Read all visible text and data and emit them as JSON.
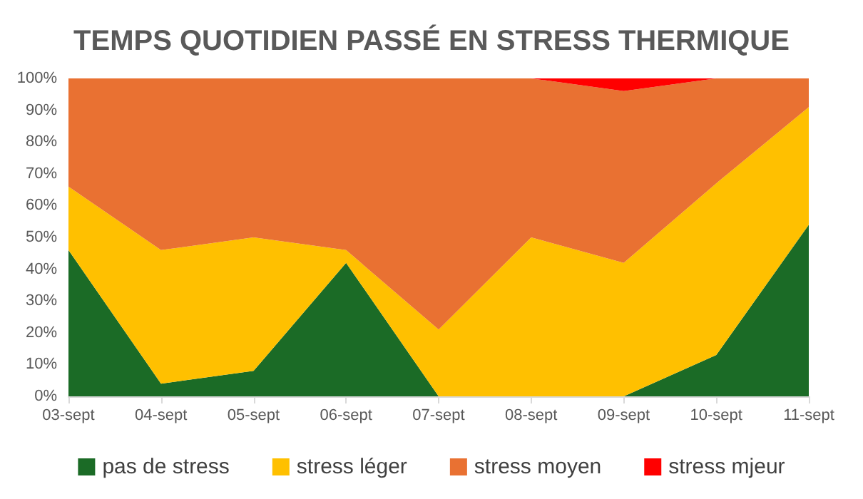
{
  "chart_data": {
    "type": "area",
    "title": "TEMPS QUOTIDIEN PASSÉ EN STRESS THERMIQUE",
    "categories": [
      "03-sept",
      "04-sept",
      "05-sept",
      "06-sept",
      "07-sept",
      "08-sept",
      "09-sept",
      "10-sept",
      "11-sept"
    ],
    "stacked": true,
    "series": [
      {
        "name": "pas de stress",
        "color": "#1b6b26",
        "values": [
          46,
          4,
          8,
          42,
          0,
          0,
          0,
          13,
          54
        ]
      },
      {
        "name": "stress léger",
        "color": "#ffc000",
        "values": [
          20,
          42,
          42,
          4,
          21,
          50,
          42,
          54,
          37
        ]
      },
      {
        "name": "stress moyen",
        "color": "#e97132",
        "values": [
          34,
          54,
          50,
          54,
          79,
          50,
          54,
          33,
          9
        ]
      },
      {
        "name": "stress mjeur",
        "color": "#ff0000",
        "values": [
          0,
          0,
          0,
          0,
          0,
          0,
          4,
          0,
          0
        ]
      }
    ],
    "ylim": [
      0,
      100
    ],
    "yticks": [
      {
        "value": 0,
        "label": "0%"
      },
      {
        "value": 10,
        "label": "10%"
      },
      {
        "value": 20,
        "label": "20%"
      },
      {
        "value": 30,
        "label": "30%"
      },
      {
        "value": 40,
        "label": "40%"
      },
      {
        "value": 50,
        "label": "50%"
      },
      {
        "value": 60,
        "label": "60%"
      },
      {
        "value": 70,
        "label": "70%"
      },
      {
        "value": 80,
        "label": "80%"
      },
      {
        "value": 90,
        "label": "90%"
      },
      {
        "value": 100,
        "label": "100%"
      }
    ],
    "grid": false,
    "legend": "bottom"
  }
}
